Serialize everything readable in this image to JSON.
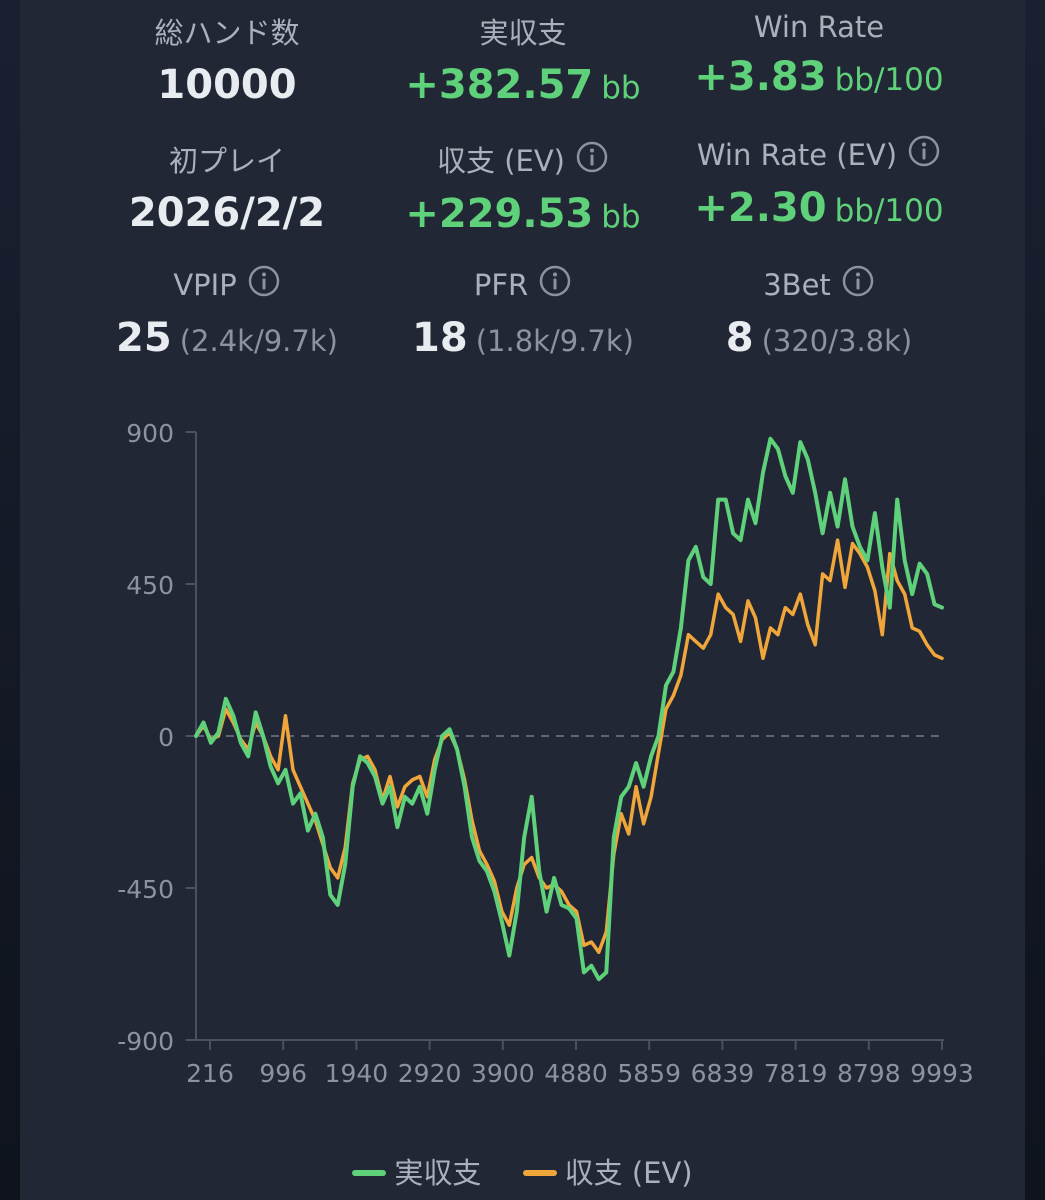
{
  "stats": {
    "total_hands": {
      "label": "総ハンド数",
      "value": "10000"
    },
    "actual_profit": {
      "label": "実収支",
      "value": "+382.57",
      "unit": "bb"
    },
    "win_rate": {
      "label": "Win Rate",
      "value": "+3.83",
      "unit": "bb/100"
    },
    "first_play": {
      "label": "初プレイ",
      "value": "2026/2/2"
    },
    "ev_profit": {
      "label": "収支 (EV)",
      "value": "+229.53",
      "unit": "bb"
    },
    "ev_win_rate": {
      "label": "Win Rate (EV)",
      "value": "+2.30",
      "unit": "bb/100"
    },
    "vpip": {
      "label": "VPIP",
      "value": "25",
      "detail": "(2.4k/9.7k)"
    },
    "pfr": {
      "label": "PFR",
      "value": "18",
      "detail": "(1.8k/9.7k)"
    },
    "three_bet": {
      "label": "3Bet",
      "value": "8",
      "detail": "(320/3.8k)"
    }
  },
  "icons": {
    "info": "info-circle-icon"
  },
  "colors": {
    "actual": "#5fd17a",
    "ev": "#f0a63a",
    "positive": "#5fd17a"
  },
  "chart_data": {
    "type": "line",
    "x_ticks": [
      "216",
      "996",
      "1940",
      "2920",
      "3900",
      "4880",
      "5859",
      "6839",
      "7819",
      "8798",
      "9993"
    ],
    "y_ticks": [
      "900",
      "450",
      "0",
      "-450",
      "-900"
    ],
    "ylim": [
      -900,
      900
    ],
    "xlim": [
      0,
      10000
    ],
    "zero_line": "dashed",
    "legend_position": "bottom-center",
    "series": [
      {
        "name": "実収支",
        "color": "#5fd17a",
        "x": [
          0,
          100,
          200,
          300,
          400,
          500,
          600,
          700,
          800,
          900,
          1000,
          1100,
          1200,
          1300,
          1400,
          1500,
          1600,
          1700,
          1800,
          1900,
          2000,
          2100,
          2200,
          2300,
          2400,
          2500,
          2600,
          2700,
          2800,
          2900,
          3000,
          3100,
          3200,
          3300,
          3400,
          3500,
          3600,
          3700,
          3800,
          3900,
          4000,
          4100,
          4200,
          4300,
          4400,
          4500,
          4600,
          4700,
          4800,
          4900,
          5000,
          5100,
          5200,
          5300,
          5400,
          5500,
          5600,
          5700,
          5800,
          5900,
          6000,
          6100,
          6200,
          6300,
          6400,
          6500,
          6600,
          6700,
          6800,
          6900,
          7000,
          7100,
          7200,
          7300,
          7400,
          7500,
          7600,
          7700,
          7800,
          7900,
          8000,
          8100,
          8200,
          8300,
          8400,
          8500,
          8600,
          8700,
          8800,
          8900,
          9000,
          9100,
          9200,
          9300,
          9400,
          9500,
          9600,
          9700,
          9800,
          9900,
          10000
        ],
        "y": [
          0,
          40,
          -20,
          10,
          110,
          60,
          -20,
          -60,
          70,
          0,
          -90,
          -140,
          -100,
          -200,
          -170,
          -280,
          -230,
          -300,
          -470,
          -500,
          -380,
          -150,
          -60,
          -80,
          -120,
          -200,
          -150,
          -270,
          -180,
          -200,
          -150,
          -230,
          -100,
          0,
          20,
          -40,
          -150,
          -300,
          -370,
          -400,
          -460,
          -550,
          -650,
          -520,
          -300,
          -180,
          -400,
          -520,
          -420,
          -500,
          -510,
          -540,
          -700,
          -680,
          -720,
          -700,
          -300,
          -180,
          -150,
          -80,
          -150,
          -60,
          0,
          150,
          190,
          320,
          520,
          560,
          470,
          450,
          700,
          700,
          600,
          580,
          700,
          630,
          780,
          880,
          850,
          770,
          720,
          870,
          820,
          720,
          600,
          720,
          620,
          760,
          620,
          560,
          520,
          660,
          500,
          380,
          700,
          520,
          420,
          510,
          480,
          390,
          380
        ],
        "source": "approximate shape, estimated"
      },
      {
        "name": "収支 (EV)",
        "color": "#f0a63a",
        "x": [
          0,
          100,
          200,
          300,
          400,
          500,
          600,
          700,
          800,
          900,
          1000,
          1100,
          1200,
          1300,
          1400,
          1500,
          1600,
          1700,
          1800,
          1900,
          2000,
          2100,
          2200,
          2300,
          2400,
          2500,
          2600,
          2700,
          2800,
          2900,
          3000,
          3100,
          3200,
          3300,
          3400,
          3500,
          3600,
          3700,
          3800,
          3900,
          4000,
          4100,
          4200,
          4300,
          4400,
          4500,
          4600,
          4700,
          4800,
          4900,
          5000,
          5100,
          5200,
          5300,
          5400,
          5500,
          5600,
          5700,
          5800,
          5900,
          6000,
          6100,
          6200,
          6300,
          6400,
          6500,
          6600,
          6700,
          6800,
          6900,
          7000,
          7100,
          7200,
          7300,
          7400,
          7500,
          7600,
          7700,
          7800,
          7900,
          8000,
          8100,
          8200,
          8300,
          8400,
          8500,
          8600,
          8700,
          8800,
          8900,
          9000,
          9100,
          9200,
          9300,
          9400,
          9500,
          9600,
          9700,
          9800,
          9900,
          10000
        ],
        "y": [
          0,
          30,
          -10,
          0,
          80,
          40,
          -10,
          -40,
          40,
          0,
          -60,
          -100,
          60,
          -100,
          -150,
          -200,
          -250,
          -320,
          -390,
          -420,
          -330,
          -140,
          -70,
          -60,
          -100,
          -190,
          -120,
          -210,
          -150,
          -130,
          -120,
          -180,
          -70,
          -10,
          10,
          -40,
          -130,
          -250,
          -340,
          -380,
          -430,
          -520,
          -560,
          -450,
          -380,
          -360,
          -420,
          -450,
          -440,
          -460,
          -500,
          -520,
          -620,
          -610,
          -640,
          -580,
          -350,
          -230,
          -290,
          -150,
          -260,
          -180,
          -50,
          80,
          120,
          180,
          300,
          280,
          260,
          300,
          420,
          380,
          360,
          280,
          400,
          350,
          230,
          320,
          300,
          380,
          360,
          420,
          330,
          270,
          480,
          460,
          580,
          440,
          570,
          540,
          500,
          430,
          300,
          540,
          460,
          420,
          320,
          310,
          270,
          240,
          230
        ],
        "source": "approximate shape, estimated"
      }
    ]
  }
}
